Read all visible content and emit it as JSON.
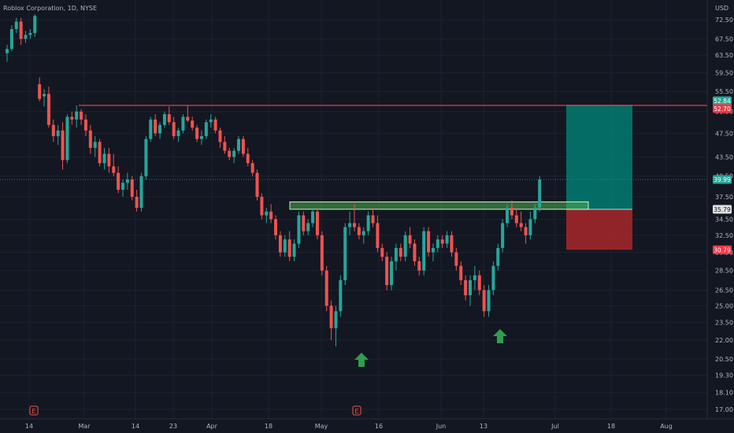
{
  "header": {
    "symbol": "Roblox Corporation, 1D, NYSE",
    "currency": "USD"
  },
  "colors": {
    "bg": "#131722",
    "grid": "#1e2230",
    "up": "#26a69a",
    "down": "#ef5350",
    "text": "#b2b5be",
    "resistance": "#f23645",
    "zone_fill": "#4caf50",
    "target_fill": "#00897b",
    "stop_fill": "#b2282b",
    "arrow": "#2e9e4f"
  },
  "axis": {
    "y_ticks": [
      "72.50",
      "67.50",
      "63.50",
      "59.50",
      "55.50",
      "51.50",
      "47.50",
      "43.50",
      "40.50",
      "37.50",
      "34.50",
      "32.50",
      "30.50",
      "28.50",
      "26.50",
      "25.00",
      "23.50",
      "22.00",
      "20.50",
      "19.30",
      "18.10",
      "17.00"
    ],
    "x_ticks": [
      "14",
      "Mar",
      "14",
      "23",
      "Apr",
      "18",
      "May",
      "16",
      "Jun",
      "13",
      "Jul",
      "18",
      "Aug"
    ]
  },
  "price_labels": [
    {
      "text": "52.84",
      "color": "#26a69a"
    },
    {
      "text": "52.70",
      "color": "#f23645"
    },
    {
      "text": "39.99",
      "color": "#26a69a"
    },
    {
      "text": "35.79",
      "color": "#e0e0e0"
    },
    {
      "text": "30.79",
      "color": "#f23645"
    }
  ],
  "earnings_icons": [
    "E",
    "E"
  ],
  "annotations": {
    "arrows": [
      "up-arrow",
      "up-arrow"
    ],
    "resistance_level": 52.7,
    "breakout_zone": [
      35.8,
      36.8
    ],
    "long_position": {
      "entry": 35.79,
      "target": 52.84,
      "stop": 30.79
    }
  },
  "chart_data": {
    "type": "candlestick",
    "title": "Roblox Corporation, 1D, NYSE",
    "ylim": [
      16.5,
      76.5
    ],
    "scale": "log",
    "candles": [
      [
        64.0,
        66.0,
        62.0,
        65.0
      ],
      [
        65.0,
        71.0,
        64.5,
        70.0
      ],
      [
        70.0,
        73.0,
        69.0,
        72.0
      ],
      [
        72.0,
        73.0,
        66.0,
        67.5
      ],
      [
        67.5,
        69.5,
        66.5,
        68.5
      ],
      [
        68.5,
        70.0,
        67.5,
        69.0
      ],
      [
        69.0,
        74.0,
        68.0,
        73.5
      ],
      [
        57.0,
        58.5,
        53.5,
        54.0
      ],
      [
        54.5,
        56.0,
        52.5,
        55.0
      ],
      [
        55.0,
        56.5,
        48.5,
        49.0
      ],
      [
        49.0,
        50.0,
        46.0,
        47.0
      ],
      [
        47.0,
        49.0,
        45.5,
        48.0
      ],
      [
        48.0,
        49.5,
        41.5,
        43.0
      ],
      [
        43.0,
        51.0,
        42.5,
        50.5
      ],
      [
        50.5,
        51.5,
        49.0,
        50.0
      ],
      [
        50.0,
        52.7,
        48.5,
        51.5
      ],
      [
        51.5,
        52.0,
        49.0,
        50.0
      ],
      [
        50.0,
        51.0,
        47.0,
        48.0
      ],
      [
        48.0,
        49.0,
        44.0,
        45.0
      ],
      [
        45.0,
        47.0,
        43.5,
        46.0
      ],
      [
        46.0,
        46.5,
        42.0,
        42.5
      ],
      [
        42.5,
        45.0,
        41.5,
        44.0
      ],
      [
        44.0,
        45.0,
        41.0,
        42.0
      ],
      [
        42.0,
        44.0,
        40.5,
        41.0
      ],
      [
        41.0,
        42.0,
        38.0,
        38.5
      ],
      [
        38.5,
        40.0,
        37.5,
        39.5
      ],
      [
        39.5,
        41.0,
        38.5,
        40.0
      ],
      [
        40.0,
        40.5,
        37.0,
        37.5
      ],
      [
        37.5,
        38.5,
        35.5,
        36.0
      ],
      [
        36.0,
        41.0,
        35.5,
        40.5
      ],
      [
        40.5,
        47.0,
        40.0,
        46.5
      ],
      [
        46.5,
        50.5,
        46.0,
        50.0
      ],
      [
        50.0,
        51.0,
        47.0,
        47.5
      ],
      [
        47.5,
        49.5,
        46.5,
        49.0
      ],
      [
        49.0,
        51.5,
        48.5,
        51.0
      ],
      [
        51.0,
        52.5,
        49.0,
        49.5
      ],
      [
        49.5,
        50.5,
        46.5,
        47.0
      ],
      [
        47.0,
        48.5,
        46.0,
        48.0
      ],
      [
        48.0,
        51.0,
        47.5,
        50.5
      ],
      [
        50.5,
        52.7,
        49.5,
        49.8
      ],
      [
        49.8,
        50.5,
        48.0,
        48.5
      ],
      [
        48.5,
        49.0,
        46.0,
        46.5
      ],
      [
        46.5,
        48.0,
        45.5,
        47.0
      ],
      [
        47.0,
        50.0,
        46.5,
        49.5
      ],
      [
        49.5,
        51.0,
        48.5,
        50.0
      ],
      [
        50.0,
        50.5,
        47.5,
        48.0
      ],
      [
        48.0,
        48.5,
        45.0,
        46.0
      ],
      [
        46.0,
        47.0,
        44.0,
        44.5
      ],
      [
        44.5,
        45.0,
        43.0,
        43.5
      ],
      [
        43.5,
        45.0,
        42.5,
        44.5
      ],
      [
        44.5,
        47.0,
        44.0,
        46.5
      ],
      [
        46.5,
        47.0,
        43.5,
        44.0
      ],
      [
        44.0,
        45.0,
        42.0,
        42.5
      ],
      [
        42.5,
        43.0,
        40.5,
        41.0
      ],
      [
        41.0,
        41.5,
        37.0,
        37.5
      ],
      [
        37.5,
        38.0,
        34.5,
        35.0
      ],
      [
        35.0,
        36.0,
        34.0,
        35.5
      ],
      [
        35.5,
        36.5,
        34.0,
        34.5
      ],
      [
        34.5,
        35.0,
        32.0,
        32.5
      ],
      [
        32.5,
        33.0,
        30.0,
        30.5
      ],
      [
        30.5,
        32.5,
        30.0,
        32.0
      ],
      [
        32.0,
        33.0,
        29.5,
        30.0
      ],
      [
        30.0,
        32.0,
        29.5,
        31.5
      ],
      [
        31.5,
        35.5,
        31.0,
        35.0
      ],
      [
        35.0,
        35.5,
        32.5,
        33.0
      ],
      [
        33.0,
        34.5,
        32.5,
        34.0
      ],
      [
        34.0,
        36.0,
        33.5,
        35.5
      ],
      [
        35.5,
        36.0,
        32.0,
        32.5
      ],
      [
        32.5,
        33.0,
        28.0,
        28.5
      ],
      [
        28.5,
        29.0,
        24.5,
        25.0
      ],
      [
        25.0,
        25.5,
        22.0,
        23.0
      ],
      [
        23.0,
        25.0,
        21.5,
        24.5
      ],
      [
        24.5,
        28.0,
        24.0,
        27.5
      ],
      [
        27.5,
        34.0,
        27.0,
        33.5
      ],
      [
        33.5,
        35.5,
        32.5,
        34.0
      ],
      [
        34.0,
        36.5,
        33.0,
        33.5
      ],
      [
        33.5,
        34.0,
        32.0,
        32.5
      ],
      [
        32.5,
        33.5,
        31.5,
        33.0
      ],
      [
        33.0,
        35.5,
        32.5,
        35.0
      ],
      [
        35.0,
        36.0,
        33.5,
        34.0
      ],
      [
        34.0,
        35.0,
        30.5,
        31.0
      ],
      [
        31.0,
        31.5,
        29.5,
        30.0
      ],
      [
        30.0,
        30.5,
        26.5,
        27.0
      ],
      [
        27.0,
        30.0,
        26.5,
        29.5
      ],
      [
        29.5,
        31.5,
        28.5,
        31.0
      ],
      [
        31.0,
        31.5,
        29.5,
        30.0
      ],
      [
        30.0,
        33.0,
        29.5,
        32.5
      ],
      [
        32.5,
        33.5,
        31.0,
        31.5
      ],
      [
        31.5,
        32.0,
        29.0,
        29.5
      ],
      [
        29.5,
        30.0,
        28.0,
        28.5
      ],
      [
        28.5,
        33.5,
        28.0,
        33.0
      ],
      [
        33.0,
        33.5,
        30.0,
        30.5
      ],
      [
        30.5,
        31.5,
        29.5,
        31.0
      ],
      [
        31.0,
        32.5,
        30.5,
        32.0
      ],
      [
        32.0,
        32.5,
        31.0,
        31.5
      ],
      [
        31.5,
        33.0,
        31.0,
        32.5
      ],
      [
        32.5,
        33.0,
        30.0,
        30.5
      ],
      [
        30.5,
        31.0,
        28.5,
        29.0
      ],
      [
        29.0,
        29.5,
        27.0,
        27.5
      ],
      [
        27.5,
        28.0,
        25.5,
        26.0
      ],
      [
        26.0,
        28.0,
        25.0,
        27.5
      ],
      [
        27.5,
        29.0,
        26.5,
        28.0
      ],
      [
        28.0,
        28.5,
        26.0,
        26.5
      ],
      [
        26.5,
        27.0,
        24.0,
        24.5
      ],
      [
        24.5,
        27.0,
        24.0,
        26.5
      ],
      [
        26.5,
        29.5,
        26.0,
        29.0
      ],
      [
        29.0,
        31.5,
        28.5,
        31.0
      ],
      [
        31.0,
        34.5,
        30.5,
        34.0
      ],
      [
        34.0,
        36.5,
        33.5,
        36.0
      ],
      [
        36.0,
        37.0,
        34.5,
        35.0
      ],
      [
        35.0,
        36.0,
        33.5,
        34.0
      ],
      [
        34.0,
        35.5,
        33.0,
        33.5
      ],
      [
        33.5,
        34.0,
        31.5,
        32.5
      ],
      [
        32.5,
        35.5,
        32.0,
        34.5
      ],
      [
        34.5,
        36.5,
        34.0,
        36.0
      ],
      [
        36.0,
        40.5,
        35.5,
        40.0
      ]
    ]
  }
}
